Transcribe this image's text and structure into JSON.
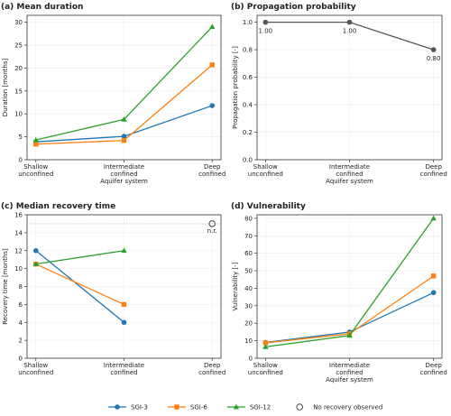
{
  "chart_data": [
    {
      "type": "line",
      "title": "(a) Mean duration",
      "xlabel": "Aquifer system",
      "ylabel": "Duration [months]",
      "categories": [
        "Shallow\nunconfined",
        "Intermediate\nconfined",
        "Deep\nconfined"
      ],
      "ylim": [
        0,
        31.5
      ],
      "yticks": [
        0,
        5,
        10,
        15,
        20,
        25,
        30
      ],
      "grid": true,
      "series": [
        {
          "name": "SGI-3",
          "color": "#1f77b4",
          "marker": "circle",
          "values": [
            3.9,
            5.1,
            11.8
          ]
        },
        {
          "name": "SGI-6",
          "color": "#ff7f0e",
          "marker": "square",
          "values": [
            3.4,
            4.2,
            20.7
          ]
        },
        {
          "name": "SGI-12",
          "color": "#2ca02c",
          "marker": "triangle",
          "values": [
            4.3,
            8.8,
            29.0
          ]
        }
      ]
    },
    {
      "type": "line",
      "title": "(b) Propagation probability",
      "xlabel": "Aquifer system",
      "ylabel": "Propagation probability [-]",
      "categories": [
        "Shallow\nunconfined",
        "Intermediate\nconfined",
        "Deep\nconfined"
      ],
      "ylim": [
        0,
        1.05
      ],
      "yticks": [
        {
          "value": 0,
          "label": "0.0"
        },
        {
          "value": 0.2,
          "label": "0.2"
        },
        {
          "value": 0.4,
          "label": "0.4"
        },
        {
          "value": 0.6,
          "label": "0.6"
        },
        {
          "value": 0.8,
          "label": "0.8"
        },
        {
          "value": 1,
          "label": "1.0"
        }
      ],
      "grid": true,
      "series": [
        {
          "color": "#555555",
          "marker": "circle",
          "values": [
            1,
            1,
            0.8
          ],
          "value_labels": [
            "1.00",
            "1.00",
            "0.80"
          ]
        }
      ]
    },
    {
      "type": "line",
      "title": "(c) Median recovery time",
      "ylabel": "Recovery time [months]",
      "categories": [
        "Shallow\nunconfined",
        "Intermediate\nconfined",
        "Deep\nconfined"
      ],
      "ylim": [
        0,
        16
      ],
      "yticks": [
        0,
        2,
        4,
        6,
        8,
        10,
        12,
        14,
        16
      ],
      "grid": true,
      "series": [
        {
          "name": "SGI-3",
          "color": "#1f77b4",
          "marker": "circle",
          "values": [
            12,
            4,
            null
          ]
        },
        {
          "name": "SGI-6",
          "color": "#ff7f0e",
          "marker": "square",
          "values": [
            10.5,
            6,
            null
          ]
        },
        {
          "name": "SGI-12",
          "color": "#2ca02c",
          "marker": "triangle",
          "values": [
            10.5,
            12,
            null
          ]
        }
      ],
      "no_recovery": {
        "name": "No recovery observed",
        "category": "Deep\nconfined",
        "value": 15,
        "label": "n.r."
      }
    },
    {
      "type": "line",
      "title": "(d) Vulnerability",
      "xlabel": "Aquifer system",
      "ylabel": "Vulnerability [-]",
      "categories": [
        "Shallow\nunconfined",
        "Intermediate\nconfined",
        "Deep\nconfined"
      ],
      "ylim": [
        0,
        82
      ],
      "yticks": [
        0,
        10,
        20,
        30,
        40,
        50,
        60,
        70,
        80
      ],
      "grid": true,
      "series": [
        {
          "name": "SGI-3",
          "color": "#1f77b4",
          "marker": "circle",
          "values": [
            9,
            15,
            37.5
          ]
        },
        {
          "name": "SGI-6",
          "color": "#ff7f0e",
          "marker": "square",
          "values": [
            8.8,
            14,
            47
          ]
        },
        {
          "name": "SGI-12",
          "color": "#2ca02c",
          "marker": "triangle",
          "values": [
            6.5,
            13,
            80
          ]
        }
      ]
    }
  ],
  "legend": "lower center"
}
